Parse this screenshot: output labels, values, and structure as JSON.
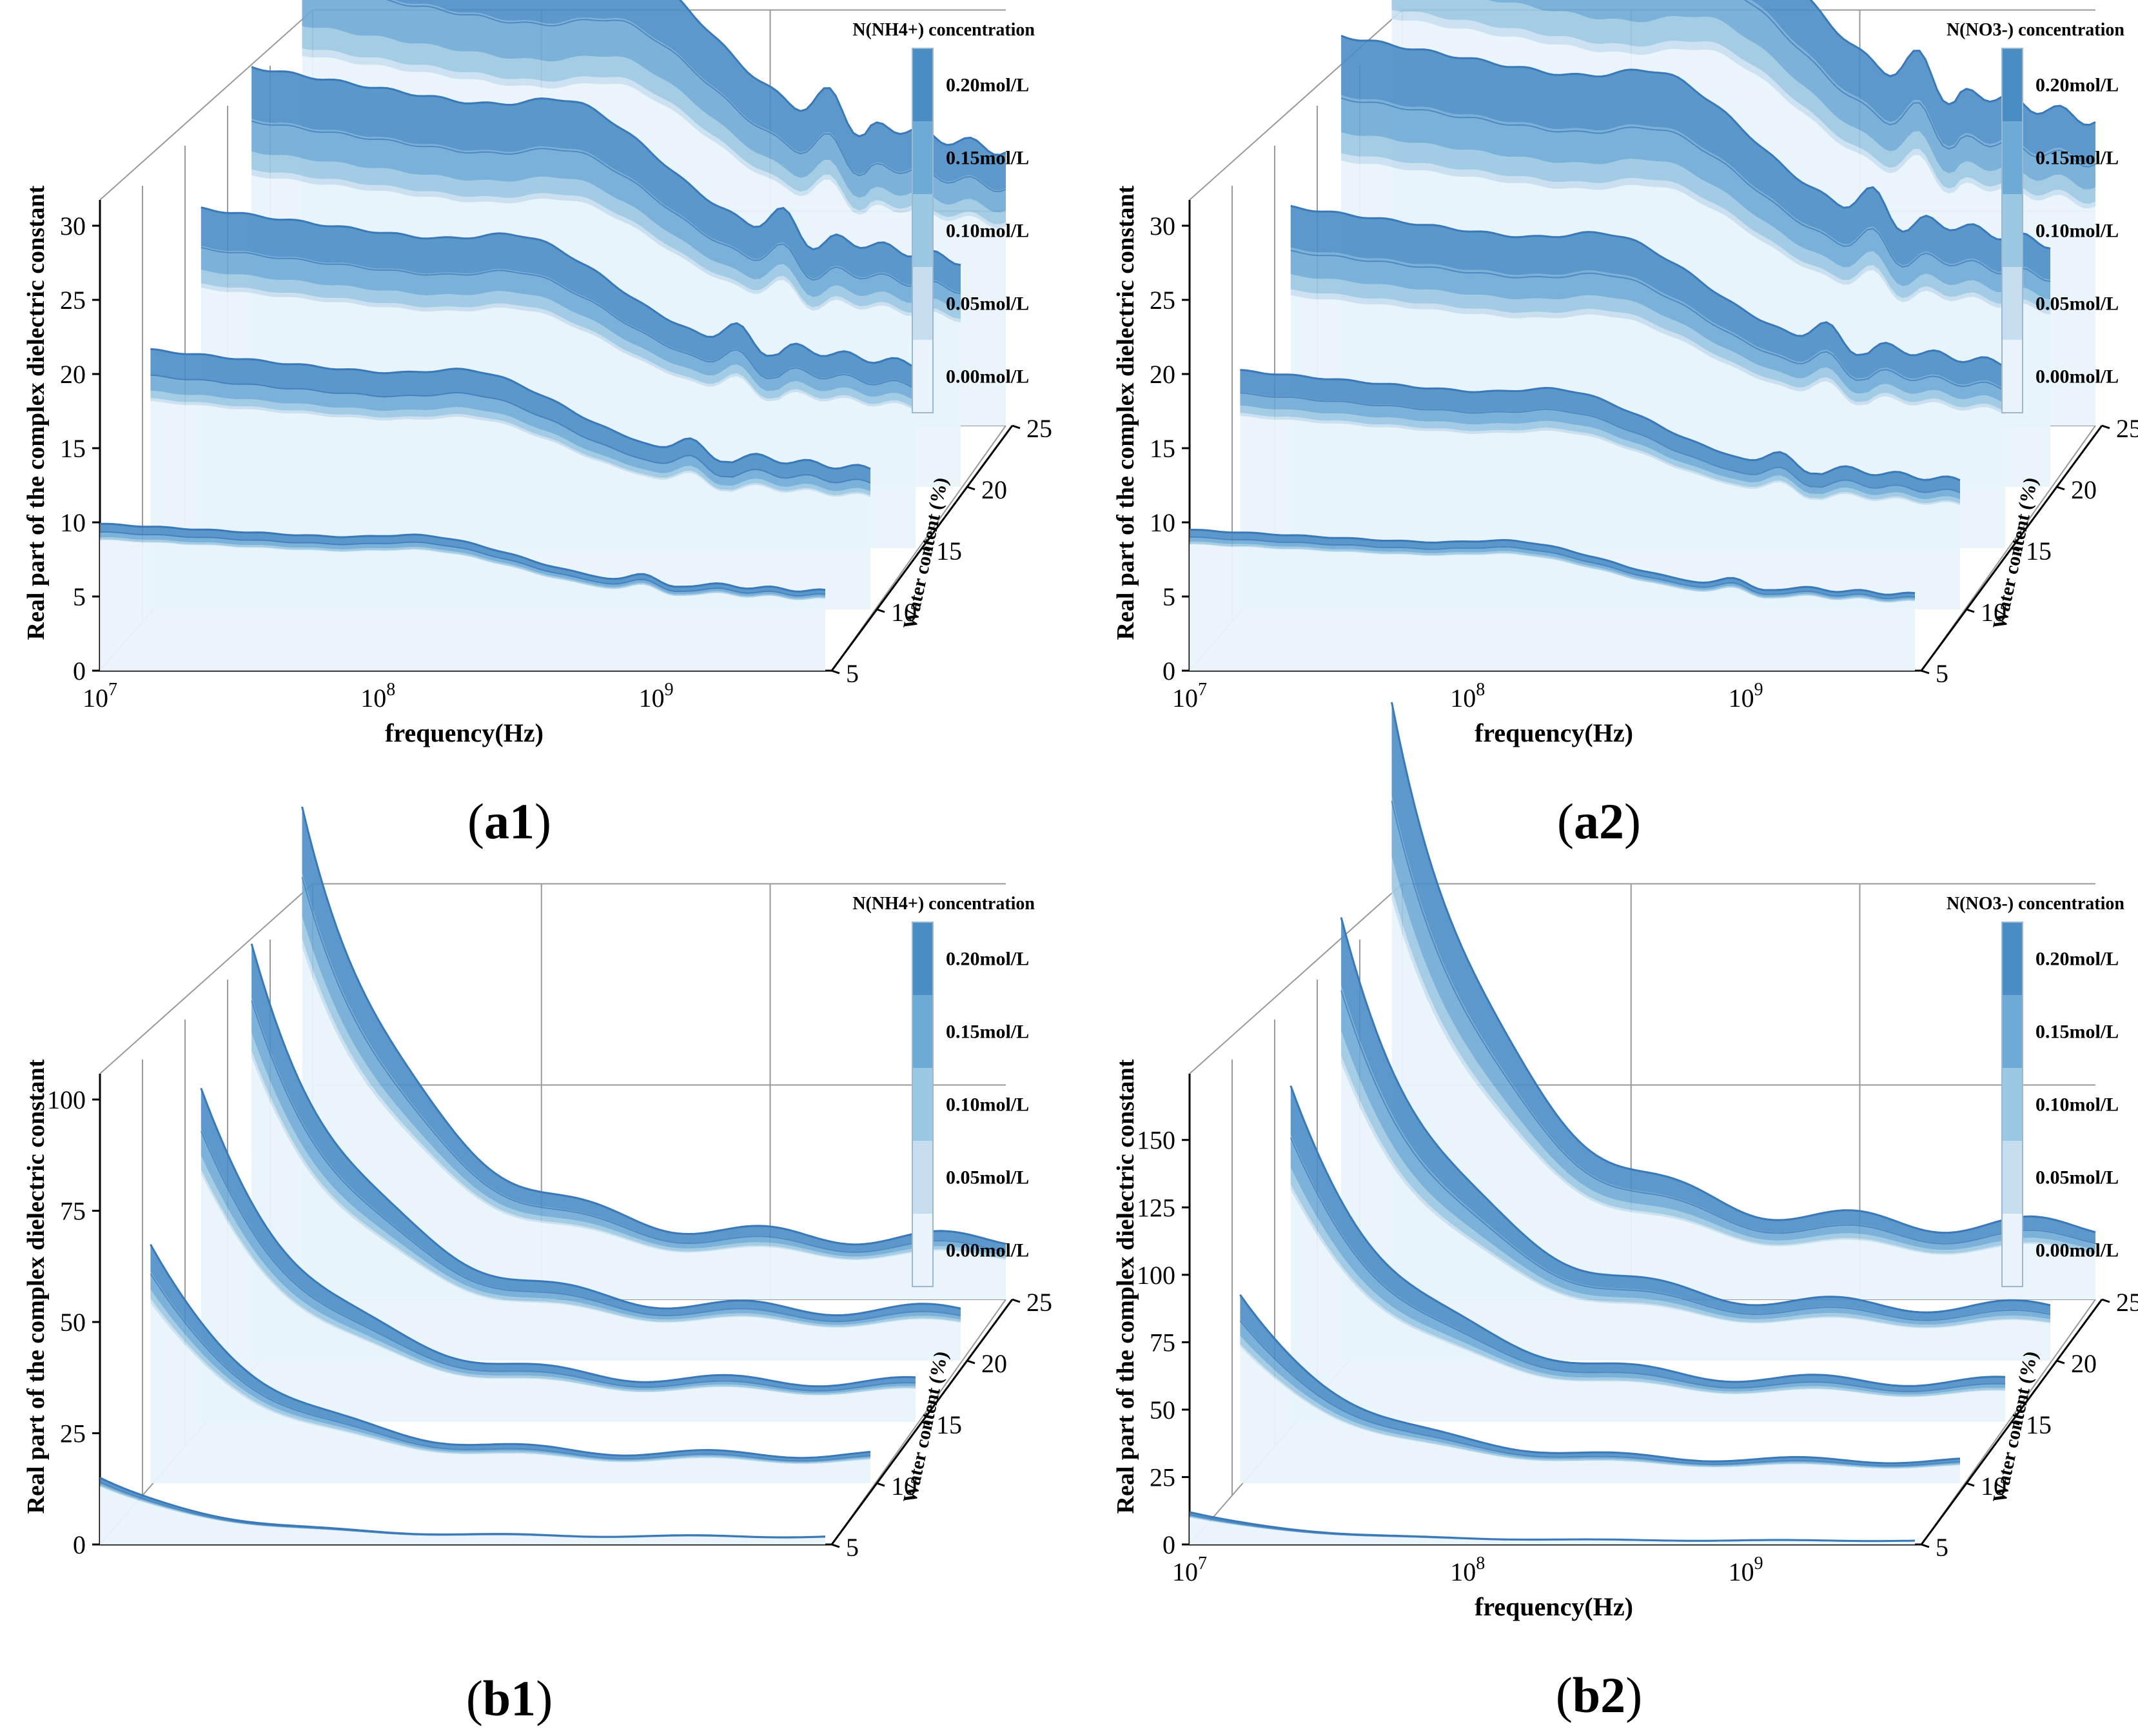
{
  "colors": {
    "level_0": "#e8f3fb",
    "level_1": "#c6def0",
    "level_2": "#9ac8e2",
    "level_3": "#6eaad6",
    "level_4": "#4a8dc5",
    "line": "#3a78b8",
    "grid": "#999999"
  },
  "chart_data": [
    {
      "id": "a1",
      "panel_label": "a1",
      "type": "area",
      "title": "",
      "legend_title": "N(NH4+) concentration",
      "legend_entries": [
        "0.20mol/L",
        "0.15mol/L",
        "0.10mol/L",
        "0.05mol/L",
        "0.00mol/L"
      ],
      "xlabel": "frequency(Hz)",
      "ylabel": "Real part of the complex dielectric constant",
      "zlabel": "Water content (%)",
      "x_ticks": [
        {
          "base": "10",
          "exp": "7"
        },
        {
          "base": "10",
          "exp": "8"
        },
        {
          "base": "10",
          "exp": "9"
        }
      ],
      "show_x_ticks": true,
      "y_ticks": [
        "0",
        "5",
        "10",
        "15",
        "20",
        "25",
        "30"
      ],
      "ylim": [
        0,
        30
      ],
      "z_ticks": [
        "5",
        "10",
        "15",
        "20",
        "25"
      ],
      "series": [
        {
          "water_content": 5,
          "start": 8.8,
          "shape": "resonant",
          "band": [
            0.6,
            0.3,
            0.15,
            0.05
          ]
        },
        {
          "water_content": 10,
          "start": 14.0,
          "shape": "resonant",
          "band": [
            1.8,
            1.0,
            0.5,
            0.2
          ]
        },
        {
          "water_content": 15,
          "start": 17.5,
          "shape": "resonant",
          "band": [
            2.6,
            1.6,
            0.9,
            0.3
          ]
        },
        {
          "water_content": 20,
          "start": 21.0,
          "shape": "resonant",
          "band": [
            3.5,
            2.2,
            1.2,
            0.4
          ]
        },
        {
          "water_content": 25,
          "start": 25.0,
          "shape": "resonant",
          "band": [
            4.5,
            2.8,
            1.5,
            0.5
          ]
        }
      ]
    },
    {
      "id": "a2",
      "panel_label": "a2",
      "type": "area",
      "title": "",
      "legend_title": "N(NO3-) concentration",
      "legend_entries": [
        "0.20mol/L",
        "0.15mol/L",
        "0.10mol/L",
        "0.05mol/L",
        "0.00mol/L"
      ],
      "xlabel": "frequency(Hz)",
      "ylabel": "Real part of the complex dielectric constant",
      "zlabel": "Water content (%)",
      "x_ticks": [
        {
          "base": "10",
          "exp": "7"
        },
        {
          "base": "10",
          "exp": "8"
        },
        {
          "base": "10",
          "exp": "9"
        }
      ],
      "show_x_ticks": true,
      "y_ticks": [
        "0",
        "5",
        "10",
        "15",
        "20",
        "25",
        "30"
      ],
      "ylim": [
        0,
        30
      ],
      "z_ticks": [
        "5",
        "10",
        "15",
        "20",
        "25"
      ],
      "series": [
        {
          "water_content": 5,
          "start": 8.5,
          "shape": "resonant",
          "band": [
            0.5,
            0.3,
            0.15,
            0.05
          ]
        },
        {
          "water_content": 10,
          "start": 13.0,
          "shape": "resonant",
          "band": [
            1.5,
            0.9,
            0.5,
            0.2
          ]
        },
        {
          "water_content": 15,
          "start": 17.0,
          "shape": "resonant",
          "band": [
            2.8,
            1.8,
            1.0,
            0.4
          ]
        },
        {
          "water_content": 20,
          "start": 22.0,
          "shape": "resonant",
          "band": [
            4.0,
            2.5,
            1.4,
            0.5
          ]
        },
        {
          "water_content": 25,
          "start": 27.5,
          "shape": "resonant",
          "band": [
            5.0,
            3.2,
            1.8,
            0.6
          ]
        }
      ]
    },
    {
      "id": "b1",
      "panel_label": "b1",
      "type": "area",
      "title": "",
      "legend_title": "N(NH4+) concentration",
      "legend_entries": [
        "0.20mol/L",
        "0.15mol/L",
        "0.10mol/L",
        "0.05mol/L",
        "0.00mol/L"
      ],
      "xlabel": "",
      "ylabel": "Real part of the complex dielectric constant",
      "zlabel": "Water content (%)",
      "x_ticks": [],
      "show_x_ticks": false,
      "y_ticks": [
        "0",
        "25",
        "50",
        "75",
        "100"
      ],
      "ylim": [
        0,
        100
      ],
      "z_ticks": [
        "5",
        "10",
        "15",
        "20",
        "25"
      ],
      "series": [
        {
          "water_content": 5,
          "start": 13,
          "shape": "decay",
          "band": [
            1.0,
            0.6,
            0.3,
            0.1
          ]
        },
        {
          "water_content": 10,
          "start": 40,
          "shape": "decay",
          "band": [
            6,
            4,
            2,
            1
          ]
        },
        {
          "water_content": 15,
          "start": 55,
          "shape": "decay",
          "band": [
            9,
            6,
            3,
            1
          ]
        },
        {
          "water_content": 20,
          "start": 68,
          "shape": "decay",
          "band": [
            12,
            8,
            4,
            1.5
          ]
        },
        {
          "water_content": 25,
          "start": 80,
          "shape": "decay",
          "band": [
            15,
            10,
            5,
            2
          ]
        }
      ]
    },
    {
      "id": "b2",
      "panel_label": "b2",
      "type": "area",
      "title": "",
      "legend_title": "N(NO3-) concentration",
      "legend_entries": [
        "0.20mol/L",
        "0.15mol/L",
        "0.10mol/L",
        "0.05mol/L",
        "0.00mol/L"
      ],
      "xlabel": "frequency(Hz)",
      "ylabel": "Real part of the complex dielectric constant",
      "zlabel": "Water content (%)",
      "x_ticks": [
        {
          "base": "10",
          "exp": "7"
        },
        {
          "base": "10",
          "exp": "8"
        },
        {
          "base": "10",
          "exp": "9"
        }
      ],
      "show_x_ticks": true,
      "y_ticks": [
        "0",
        "25",
        "50",
        "75",
        "100",
        "125",
        "150"
      ],
      "ylim": [
        0,
        165
      ],
      "z_ticks": [
        "5",
        "10",
        "15",
        "20",
        "25"
      ],
      "series": [
        {
          "water_content": 5,
          "start": 10,
          "shape": "decay",
          "band": [
            1.0,
            0.6,
            0.3,
            0.1
          ]
        },
        {
          "water_content": 10,
          "start": 50,
          "shape": "decay",
          "band": [
            9,
            6,
            3,
            1
          ]
        },
        {
          "water_content": 15,
          "start": 85,
          "shape": "decay",
          "band": [
            18,
            12,
            6,
            2
          ]
        },
        {
          "water_content": 20,
          "start": 110,
          "shape": "decay",
          "band": [
            25,
            17,
            9,
            3
          ]
        },
        {
          "water_content": 25,
          "start": 150,
          "shape": "decay",
          "band": [
            35,
            23,
            12,
            4
          ]
        }
      ]
    }
  ]
}
